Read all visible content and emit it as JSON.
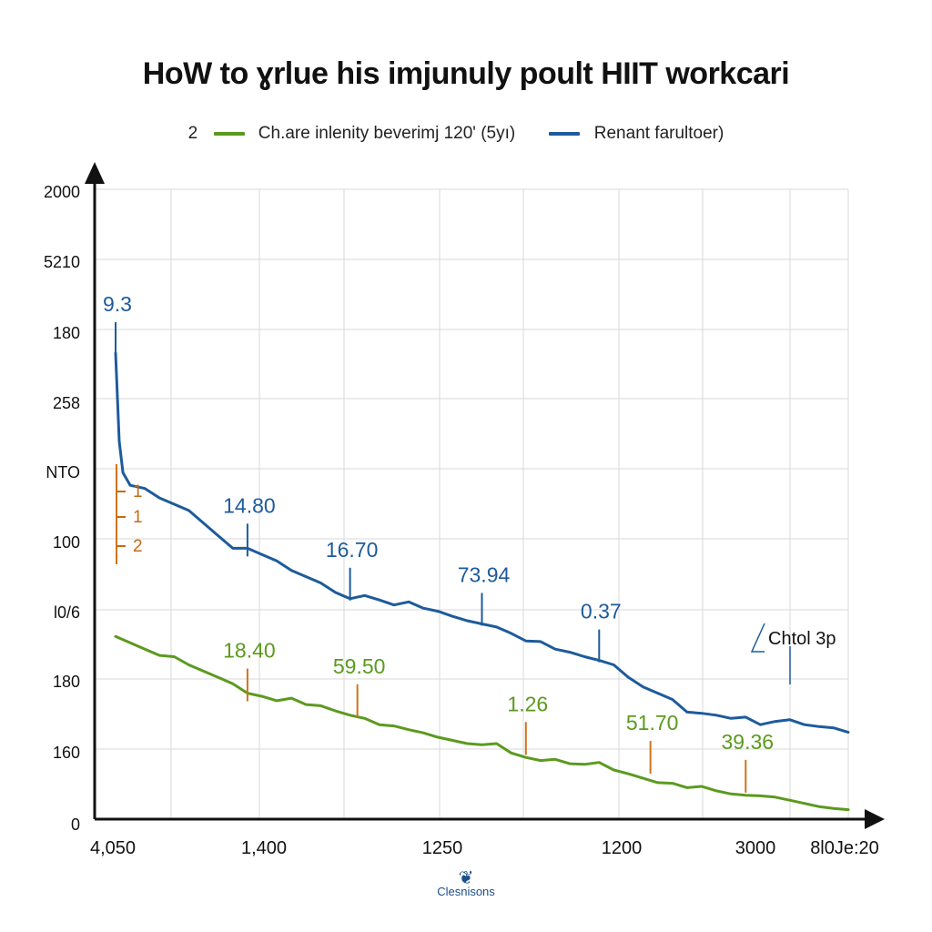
{
  "chart_data": {
    "type": "line",
    "title": "HoW to ɣrlue his imjunuly poult HIIT workcari",
    "legend": {
      "prefix": "2",
      "placement": "top-center"
    },
    "x_tick_labels": [
      "4,050",
      "1,400",
      "1250",
      "1200",
      "3000",
      "8l0Je:20"
    ],
    "y_tick_labels": [
      "2000",
      "5210",
      "180",
      "258",
      "NTO",
      "100",
      "l0/6",
      "180",
      "160",
      "0"
    ],
    "series": [
      {
        "name": "Ch.are inlenity beverimj 120' (5yı)",
        "color": "#5b9a1e",
        "x": [
          0,
          2,
          4,
          6,
          8,
          10,
          12,
          14,
          16,
          18,
          20,
          22,
          24,
          26,
          28,
          30,
          32,
          34,
          36,
          38,
          40,
          42,
          44,
          46,
          48,
          50,
          52,
          54,
          56,
          58,
          60,
          62,
          64,
          66,
          68,
          70,
          72,
          74,
          76,
          78,
          80,
          82,
          84,
          86,
          88,
          90,
          92,
          94,
          96,
          98,
          100
        ],
        "y": [
          0.29,
          0.28,
          0.27,
          0.26,
          0.258,
          0.245,
          0.235,
          0.225,
          0.215,
          0.2,
          0.195,
          0.188,
          0.192,
          0.182,
          0.18,
          0.172,
          0.165,
          0.16,
          0.15,
          0.148,
          0.142,
          0.137,
          0.13,
          0.125,
          0.12,
          0.118,
          0.12,
          0.105,
          0.098,
          0.093,
          0.095,
          0.088,
          0.087,
          0.09,
          0.078,
          0.072,
          0.065,
          0.058,
          0.057,
          0.05,
          0.052,
          0.045,
          0.04,
          0.038,
          0.037,
          0.035,
          0.03,
          0.025,
          0.02,
          0.017,
          0.015
        ],
        "annotations": [
          {
            "x": 18,
            "y": 0.19,
            "label": "18.40"
          },
          {
            "x": 33,
            "y": 0.165,
            "label": "59.50"
          },
          {
            "x": 56,
            "y": 0.105,
            "label": "1.26"
          },
          {
            "x": 73,
            "y": 0.075,
            "label": "51.70"
          },
          {
            "x": 86,
            "y": 0.045,
            "label": "39.36"
          }
        ]
      },
      {
        "name": "Renant farultoer)",
        "color": "#1d5b9c",
        "x": [
          0,
          0.5,
          1,
          2,
          4,
          6,
          8,
          10,
          12,
          14,
          16,
          18,
          20,
          22,
          24,
          26,
          28,
          30,
          32,
          34,
          36,
          38,
          40,
          42,
          44,
          46,
          48,
          50,
          52,
          54,
          56,
          58,
          60,
          62,
          64,
          66,
          68,
          70,
          72,
          74,
          76,
          78,
          80,
          82,
          84,
          86,
          88,
          90,
          92,
          94,
          96,
          98,
          100
        ],
        "y": [
          0.74,
          0.6,
          0.55,
          0.53,
          0.525,
          0.51,
          0.5,
          0.49,
          0.47,
          0.45,
          0.43,
          0.43,
          0.42,
          0.41,
          0.395,
          0.385,
          0.375,
          0.36,
          0.35,
          0.355,
          0.348,
          0.34,
          0.345,
          0.335,
          0.33,
          0.322,
          0.315,
          0.31,
          0.305,
          0.295,
          0.283,
          0.282,
          0.27,
          0.265,
          0.258,
          0.252,
          0.245,
          0.225,
          0.21,
          0.2,
          0.19,
          0.17,
          0.168,
          0.165,
          0.16,
          0.162,
          0.15,
          0.155,
          0.158,
          0.15,
          0.147,
          0.145,
          0.138
        ],
        "annotations": [
          {
            "x": 0,
            "y": 0.74,
            "label": "9.3"
          },
          {
            "x": 18,
            "y": 0.42,
            "label": "14.80"
          },
          {
            "x": 32,
            "y": 0.35,
            "label": "16.70"
          },
          {
            "x": 50,
            "y": 0.31,
            "label": "73.94"
          },
          {
            "x": 66,
            "y": 0.252,
            "label": "0.37"
          }
        ]
      }
    ],
    "side_markers": [
      {
        "label": "1",
        "color": "#c76a15"
      },
      {
        "label": "1",
        "color": "#c76a15"
      },
      {
        "label": "2",
        "color": "#c76a15"
      }
    ],
    "callout": {
      "label": "Chtol 3p"
    },
    "xlim": [
      0,
      100
    ],
    "ylim": [
      0,
      1
    ],
    "grid": true
  },
  "watermark": {
    "text": "Clesnisons"
  }
}
